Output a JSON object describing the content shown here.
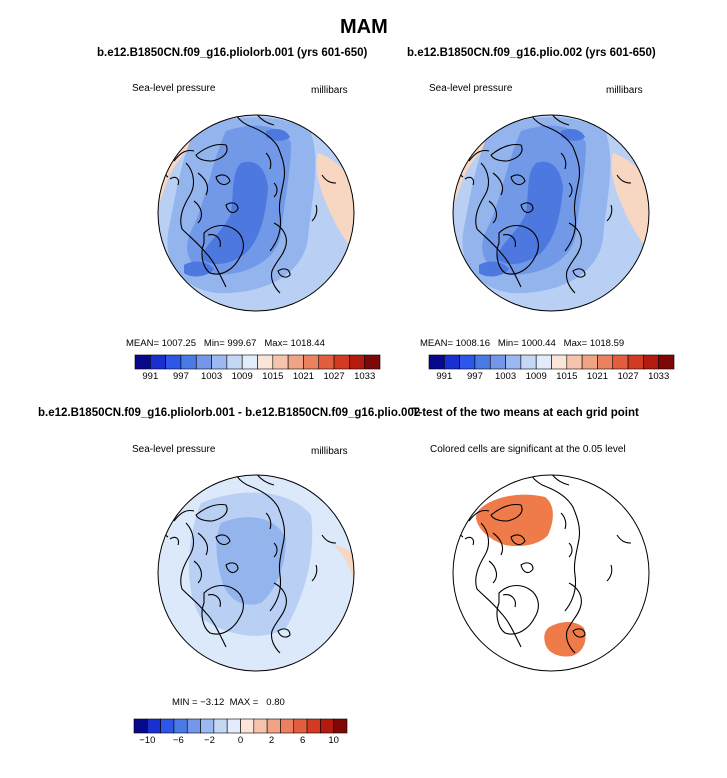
{
  "page_title": "MAM",
  "panels": [
    {
      "title": "b.e12.B1850CN.f09_g16.pliolorb.001 (yrs 601-650)",
      "left_label": "Sea-level pressure",
      "right_label": "millibars",
      "stats": {
        "mean_label": "MEAN=",
        "mean": "1007.25",
        "min_label": "Min=",
        "min": "999.67",
        "max_label": "Max=",
        "max": "1018.44"
      }
    },
    {
      "title": "b.e12.B1850CN.f09_g16.plio.002 (yrs 601-650)",
      "left_label": "Sea-level pressure",
      "right_label": "millibars",
      "stats": {
        "mean_label": "MEAN=",
        "mean": "1008.16",
        "min_label": "Min=",
        "min": "1000.44",
        "max_label": "Max=",
        "max": "1018.59"
      }
    },
    {
      "title": "b.e12.B1850CN.f09_g16.pliolorb.001 - b.e12.B1850CN.f09_g16.plio.002",
      "left_label": "Sea-level pressure",
      "right_label": "millibars",
      "stats": {
        "min_label": "MIN =",
        "min": "−3.12",
        "max_label": "MAX =",
        "max": "0.80"
      }
    },
    {
      "title": "T-test of the two means at each grid point",
      "left_label": "Colored cells are significant at the 0.05 level"
    }
  ],
  "colorbars": {
    "abs": {
      "colors": [
        "#08088a",
        "#1a2fd0",
        "#2e56e8",
        "#4a7ae6",
        "#7497ec",
        "#9cb8f2",
        "#c4d8f6",
        "#e2ecfb",
        "#fbe4d8",
        "#f6c4ad",
        "#f1a485",
        "#ec8160",
        "#e35e3f",
        "#d33a24",
        "#b31a10",
        "#7e0707"
      ],
      "ticks": [
        "991",
        "997",
        "1003",
        "1009",
        "1015",
        "1021",
        "1027",
        "1033"
      ]
    },
    "diff": {
      "colors": [
        "#08088a",
        "#1a2fd0",
        "#2e56e8",
        "#4a7ae6",
        "#7497ec",
        "#9cb8f2",
        "#c4d8f6",
        "#e2ecfb",
        "#fbe4d8",
        "#f6c4ad",
        "#f1a485",
        "#ec8160",
        "#e35e3f",
        "#d33a24",
        "#b31a10",
        "#7e0707"
      ],
      "ticks": [
        "−10",
        "−6",
        "−2",
        "0",
        "2",
        "6",
        "10"
      ]
    }
  },
  "field_colors": {
    "pink": "#f7d6c2",
    "pale_blue": "#dce9fb",
    "light_blue": "#b9d0f4",
    "mid_blue": "#94b4ee",
    "blue": "#7199e8",
    "deep_blue": "#4c78df",
    "sig_orange": "#f07b4a"
  }
}
